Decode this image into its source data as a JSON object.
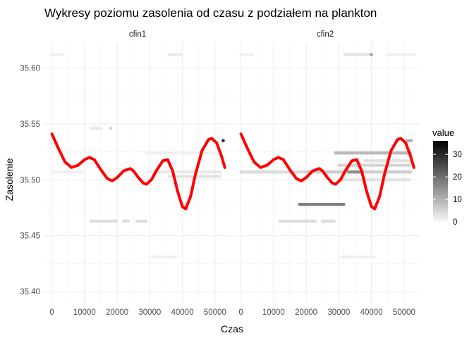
{
  "chart_data": {
    "type": "scatter",
    "title": "Wykresy poziomu zasolenia od czasu z podziałem na plankton",
    "xlabel": "Czas",
    "ylabel": "Zasolenie",
    "xlim": [
      -2500,
      55000
    ],
    "ylim": [
      35.39,
      35.623
    ],
    "x_ticks": [
      0,
      10000,
      20000,
      30000,
      40000,
      50000
    ],
    "x_tick_labels": [
      "0",
      "10000",
      "20000",
      "30000",
      "40000",
      "50000"
    ],
    "y_ticks": [
      35.4,
      35.45,
      35.5,
      35.55,
      35.6
    ],
    "y_tick_labels": [
      "35.40",
      "35.45",
      "35.50",
      "35.55",
      "35.60"
    ],
    "grid": true,
    "legend": {
      "title": "value",
      "position": "right",
      "range": [
        0,
        36
      ],
      "ticks": [
        0,
        10,
        20,
        30
      ],
      "tick_labels": [
        "0",
        "10",
        "20",
        "30"
      ],
      "low_color": "#f7f7f7",
      "high_color": "#000000"
    },
    "smooth_color": "#ff0000",
    "panels": [
      {
        "strip": "cfin1",
        "points": [
          {
            "x": [
              0,
              3500
            ],
            "y": 35.612,
            "step": 700,
            "v": 1
          },
          {
            "x": [
              36000,
              40000
            ],
            "y": 35.612,
            "step": 700,
            "v": 2
          },
          {
            "x": [
              12000,
              15500
            ],
            "y": 35.546,
            "step": 600,
            "v": 2
          },
          {
            "x": [
              18000,
              18000
            ],
            "y": 35.546,
            "step": 600,
            "v": 5
          },
          {
            "x": [
              12000,
              20000
            ],
            "y": 35.463,
            "step": 600,
            "v": 4
          },
          {
            "x": [
              22000,
              24000
            ],
            "y": 35.463,
            "step": 700,
            "v": 4
          },
          {
            "x": [
              26000,
              29000
            ],
            "y": 35.463,
            "step": 700,
            "v": 4
          },
          {
            "x": [
              31000,
              38000
            ],
            "y": 35.431,
            "step": 700,
            "v": 1
          },
          {
            "x": [
              29000,
              52000
            ],
            "y": 35.524,
            "step": 800,
            "v": 1
          },
          {
            "x": [
              30000,
              52000
            ],
            "y": 35.507,
            "step": 700,
            "v": 2
          },
          {
            "x": [
              36000,
              52000
            ],
            "y": 35.503,
            "step": 700,
            "v": 3
          },
          {
            "x": [
              0,
              10000
            ],
            "y": 35.507,
            "step": 900,
            "v": 1
          },
          {
            "x": [
              52500,
              52500
            ],
            "y": 35.535,
            "step": 600,
            "v": 30
          }
        ],
        "smooth": {
          "x": [
            0,
            2000,
            4000,
            6000,
            8000,
            10000,
            11500,
            13000,
            15000,
            17000,
            18500,
            20000,
            22000,
            24000,
            25000,
            26500,
            28000,
            29000,
            30500,
            32000,
            34000,
            35500,
            37000,
            38500,
            40000,
            41000,
            42500,
            44000,
            46000,
            48000,
            49000,
            50500,
            52000,
            53000
          ],
          "y": [
            35.541,
            35.528,
            35.516,
            35.511,
            35.513,
            35.518,
            35.52,
            35.518,
            35.509,
            35.501,
            35.499,
            35.502,
            35.508,
            35.51,
            35.508,
            35.502,
            35.497,
            35.496,
            35.5,
            35.508,
            35.517,
            35.518,
            35.508,
            35.49,
            35.476,
            35.474,
            35.485,
            35.505,
            35.526,
            35.536,
            35.537,
            35.533,
            35.521,
            35.511
          ]
        }
      },
      {
        "strip": "cfin2",
        "points": [
          {
            "x": [
              0,
              3500
            ],
            "y": 35.612,
            "step": 700,
            "v": 1
          },
          {
            "x": [
              32000,
              40000
            ],
            "y": 35.612,
            "step": 700,
            "v": 3
          },
          {
            "x": [
              40000,
              40000
            ],
            "y": 35.612,
            "step": 700,
            "v": 12
          },
          {
            "x": [
              45000,
              53000
            ],
            "y": 35.612,
            "step": 800,
            "v": 1
          },
          {
            "x": [
              0,
              20000
            ],
            "y": 35.507,
            "step": 500,
            "v": 4
          },
          {
            "x": [
              20000,
              33000
            ],
            "y": 35.507,
            "step": 500,
            "v": 6
          },
          {
            "x": [
              33000,
              38000
            ],
            "y": 35.507,
            "step": 500,
            "v": 15
          },
          {
            "x": [
              38000,
              52000
            ],
            "y": 35.507,
            "step": 500,
            "v": 6
          },
          {
            "x": [
              18000,
              31500
            ],
            "y": 35.478,
            "step": 500,
            "v": 18
          },
          {
            "x": [
              12000,
              23000
            ],
            "y": 35.463,
            "step": 600,
            "v": 4
          },
          {
            "x": [
              25000,
              29000
            ],
            "y": 35.463,
            "step": 700,
            "v": 4
          },
          {
            "x": [
              31000,
              41000
            ],
            "y": 35.431,
            "step": 700,
            "v": 1
          },
          {
            "x": [
              29000,
              52000
            ],
            "y": 35.524,
            "step": 500,
            "v": 9
          },
          {
            "x": [
              30000,
              52000
            ],
            "y": 35.513,
            "step": 600,
            "v": 5
          },
          {
            "x": [
              30000,
              52000
            ],
            "y": 35.5,
            "step": 700,
            "v": 3
          },
          {
            "x": [
              38000,
              52000
            ],
            "y": 35.517,
            "step": 700,
            "v": 3
          },
          {
            "x": [
              51000,
              52500
            ],
            "y": 35.535,
            "step": 600,
            "v": 10
          }
        ],
        "smooth": {
          "x": [
            0,
            2000,
            4000,
            6000,
            8000,
            10000,
            11500,
            13000,
            15000,
            17000,
            18500,
            20000,
            22000,
            24000,
            25000,
            26500,
            28000,
            29000,
            30500,
            32000,
            34000,
            35500,
            37000,
            38500,
            40000,
            41000,
            42500,
            44000,
            46000,
            48000,
            49000,
            50500,
            52000,
            53000
          ],
          "y": [
            35.541,
            35.528,
            35.516,
            35.511,
            35.513,
            35.518,
            35.52,
            35.518,
            35.509,
            35.501,
            35.499,
            35.502,
            35.508,
            35.51,
            35.508,
            35.502,
            35.497,
            35.496,
            35.5,
            35.508,
            35.517,
            35.518,
            35.508,
            35.49,
            35.476,
            35.474,
            35.485,
            35.505,
            35.526,
            35.536,
            35.537,
            35.533,
            35.521,
            35.511
          ]
        }
      }
    ]
  }
}
